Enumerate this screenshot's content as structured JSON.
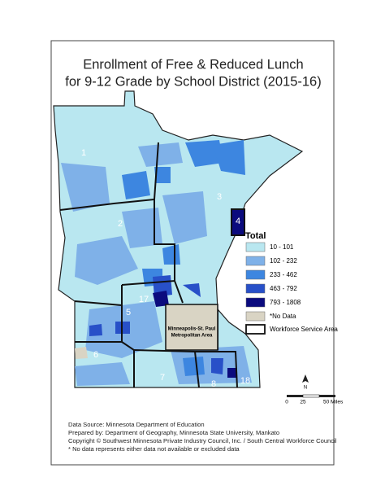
{
  "title": {
    "line1": "Enrollment of Free & Reduced Lunch",
    "line2": "for 9-12 Grade by School District (2015-16)"
  },
  "legend": {
    "title": "Total",
    "items": [
      {
        "label": "10 - 101",
        "color": "#b9e7f0"
      },
      {
        "label": "102 - 232",
        "color": "#7fb1e8"
      },
      {
        "label": "233 - 462",
        "color": "#3d86e0"
      },
      {
        "label": "463 - 792",
        "color": "#2850c8"
      },
      {
        "label": "793 - 1808",
        "color": "#0b0b7e"
      },
      {
        "label": "*No Data",
        "color": "#d9d4c4"
      }
    ],
    "boundary": "Workforce Service Area"
  },
  "regions": [
    "1",
    "2",
    "3",
    "4",
    "17",
    "5",
    "6",
    "7",
    "8",
    "18"
  ],
  "metro": {
    "line1": "Minneapolis-St. Paul",
    "line2": "Metropolitan Area"
  },
  "north": "N",
  "scale": {
    "labels": [
      "0",
      "25",
      "50 Miles"
    ]
  },
  "footer": [
    "Data Source: Minnesota Department of Education",
    "Prepared by: Department of Geography, Minnesota State University, Mankato",
    "Copyright © Southwest Minnesota Private Industry Council, Inc. / South Central Workforce Council",
    "* No data represents either data not available or excluded data"
  ]
}
